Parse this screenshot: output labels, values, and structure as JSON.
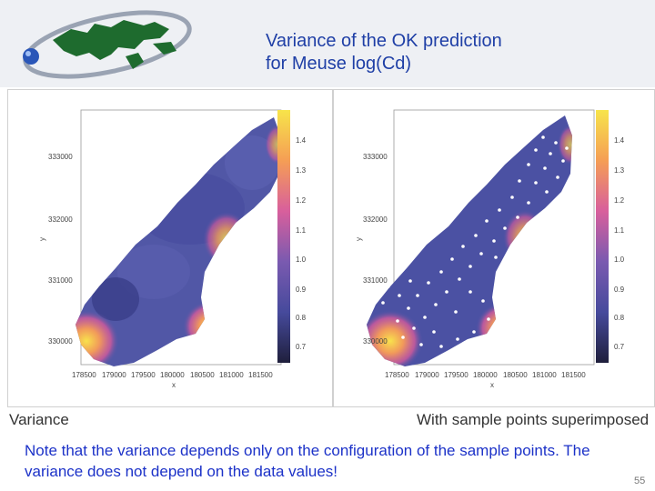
{
  "slide": {
    "title_line1": "Variance of the OK prediction",
    "title_line2": "for Meuse log(Cd)",
    "note": "Note that the variance depends only on the configuration of the sample points. The variance does not depend on the data values!",
    "page_number": "55"
  },
  "panels": [
    {
      "caption": "Variance",
      "x_ticks": [
        "178500",
        "179000",
        "179500",
        "180000",
        "180500",
        "181000",
        "181500"
      ],
      "y_ticks": [
        "333000",
        "332000",
        "331000",
        "330000"
      ],
      "xlabel": "x",
      "ylabel": "y",
      "colorbar_ticks": [
        "1.4",
        "1.3",
        "1.2",
        "1.1",
        "1.0",
        "0.9",
        "0.8",
        "0.7"
      ],
      "show_points": false
    },
    {
      "caption": "With sample points superimposed",
      "x_ticks": [
        "178500",
        "179000",
        "179500",
        "180000",
        "180500",
        "181000",
        "181500"
      ],
      "y_ticks": [
        "333000",
        "332000",
        "331000",
        "330000"
      ],
      "xlabel": "x",
      "ylabel": "y",
      "colorbar_ticks": [
        "1.4",
        "1.3",
        "1.2",
        "1.1",
        "1.0",
        "0.9",
        "0.8",
        "0.7"
      ],
      "show_points": true
    }
  ],
  "colors": {
    "title": "#1f3fa6",
    "note": "#1c32c8",
    "low_variance": "#2b2f6e",
    "high_variance": "#f7e34a"
  }
}
